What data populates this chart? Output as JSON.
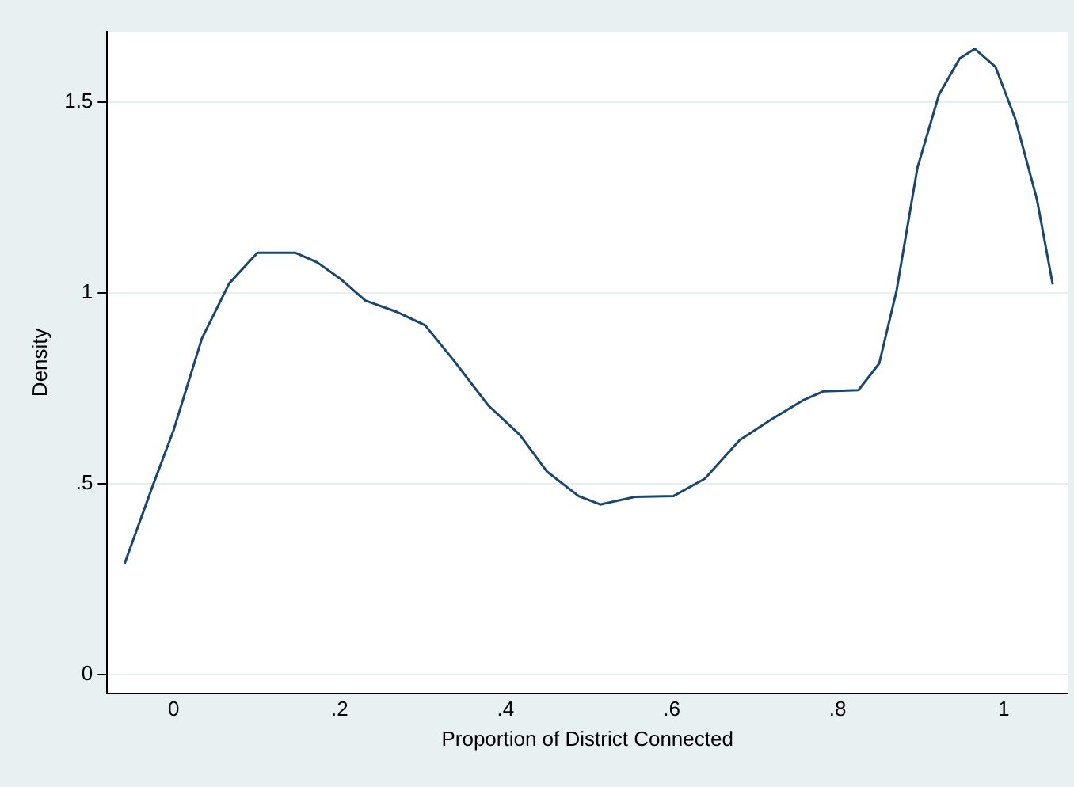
{
  "chart_data": {
    "type": "line",
    "xlabel": "Proportion of District Connected",
    "ylabel": "Density",
    "color": "#1a476f",
    "x": [
      -0.059,
      -0.025,
      0,
      0.034,
      0.067,
      0.101,
      0.147,
      0.173,
      0.202,
      0.231,
      0.269,
      0.303,
      0.337,
      0.379,
      0.417,
      0.45,
      0.488,
      0.514,
      0.556,
      0.602,
      0.64,
      0.682,
      0.72,
      0.758,
      0.783,
      0.825,
      0.85,
      0.871,
      0.896,
      0.922,
      0.947,
      0.965,
      0.99,
      1.014,
      1.04,
      1.059
    ],
    "values": [
      0.29,
      0.495,
      0.64,
      0.88,
      1.025,
      1.105,
      1.105,
      1.08,
      1.035,
      0.98,
      0.95,
      0.915,
      0.824,
      0.705,
      0.628,
      0.531,
      0.467,
      0.445,
      0.465,
      0.467,
      0.513,
      0.614,
      0.668,
      0.718,
      0.742,
      0.745,
      0.815,
      1.007,
      1.328,
      1.52,
      1.615,
      1.64,
      1.593,
      1.456,
      1.245,
      1.022
    ],
    "xlim": [
      -0.08,
      1.077
    ],
    "ylim": [
      -0.05,
      1.685
    ],
    "xticks": [
      0,
      {
        "value": 0.2,
        "label": ".2"
      },
      {
        "value": 0.4,
        "label": ".4"
      },
      {
        "value": 0.6,
        "label": ".6"
      },
      {
        "value": 0.8,
        "label": ".8"
      },
      1
    ],
    "yticks": [
      0,
      {
        "value": 0.5,
        "label": ".5"
      },
      1,
      1.5
    ],
    "grid": "y",
    "marker": "none",
    "line_style": "solid",
    "legend": false
  }
}
